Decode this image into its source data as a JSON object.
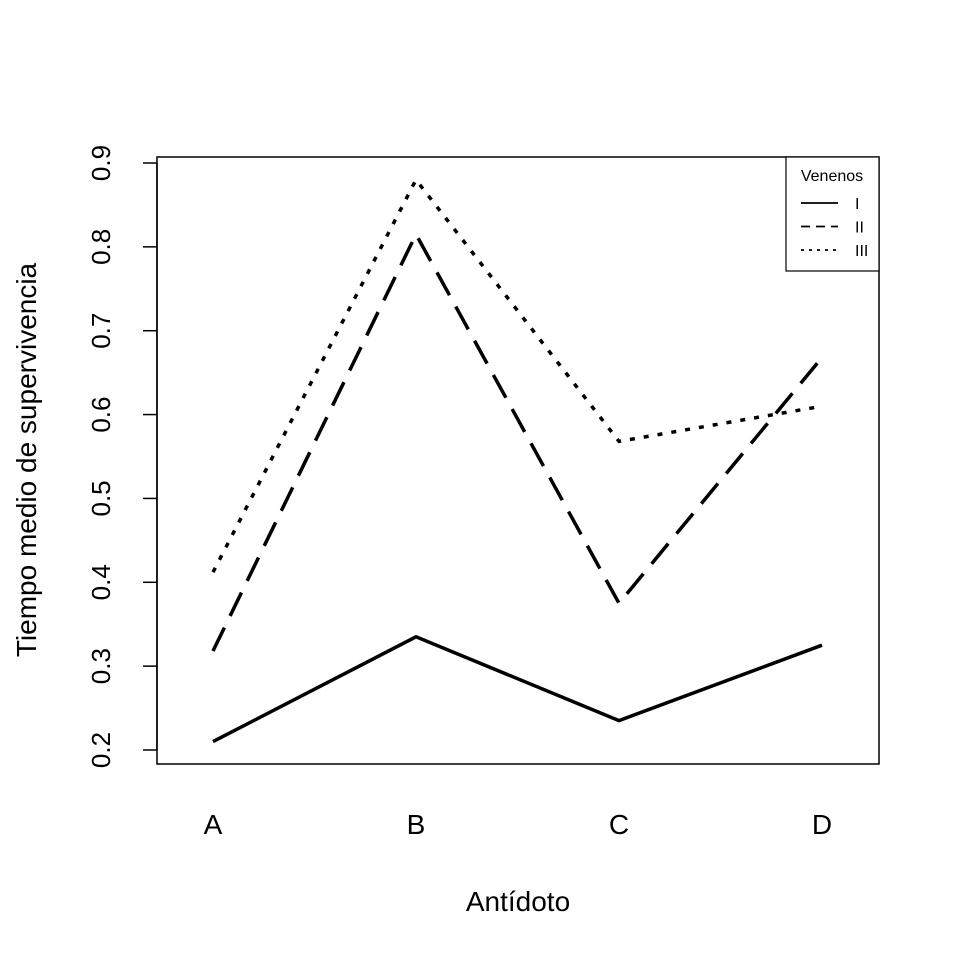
{
  "chart_data": {
    "type": "line",
    "title": "",
    "xlabel": "Antídoto",
    "ylabel": "Tiempo medio de supervivencia",
    "categories": [
      "A",
      "B",
      "C",
      "D"
    ],
    "ylim": [
      0.2,
      0.9
    ],
    "yticks": [
      "0.2",
      "0.3",
      "0.4",
      "0.5",
      "0.6",
      "0.7",
      "0.8",
      "0.9"
    ],
    "grid": false,
    "legend": {
      "title": "Venenos",
      "position": "top-right"
    },
    "series": [
      {
        "name": "I",
        "line_style": "solid",
        "values": [
          0.21,
          0.335,
          0.235,
          0.325
        ]
      },
      {
        "name": "II",
        "line_style": "dashed",
        "values": [
          0.318,
          0.815,
          0.375,
          0.668
        ]
      },
      {
        "name": "III",
        "line_style": "dotted",
        "values": [
          0.412,
          0.88,
          0.568,
          0.61
        ]
      }
    ]
  }
}
